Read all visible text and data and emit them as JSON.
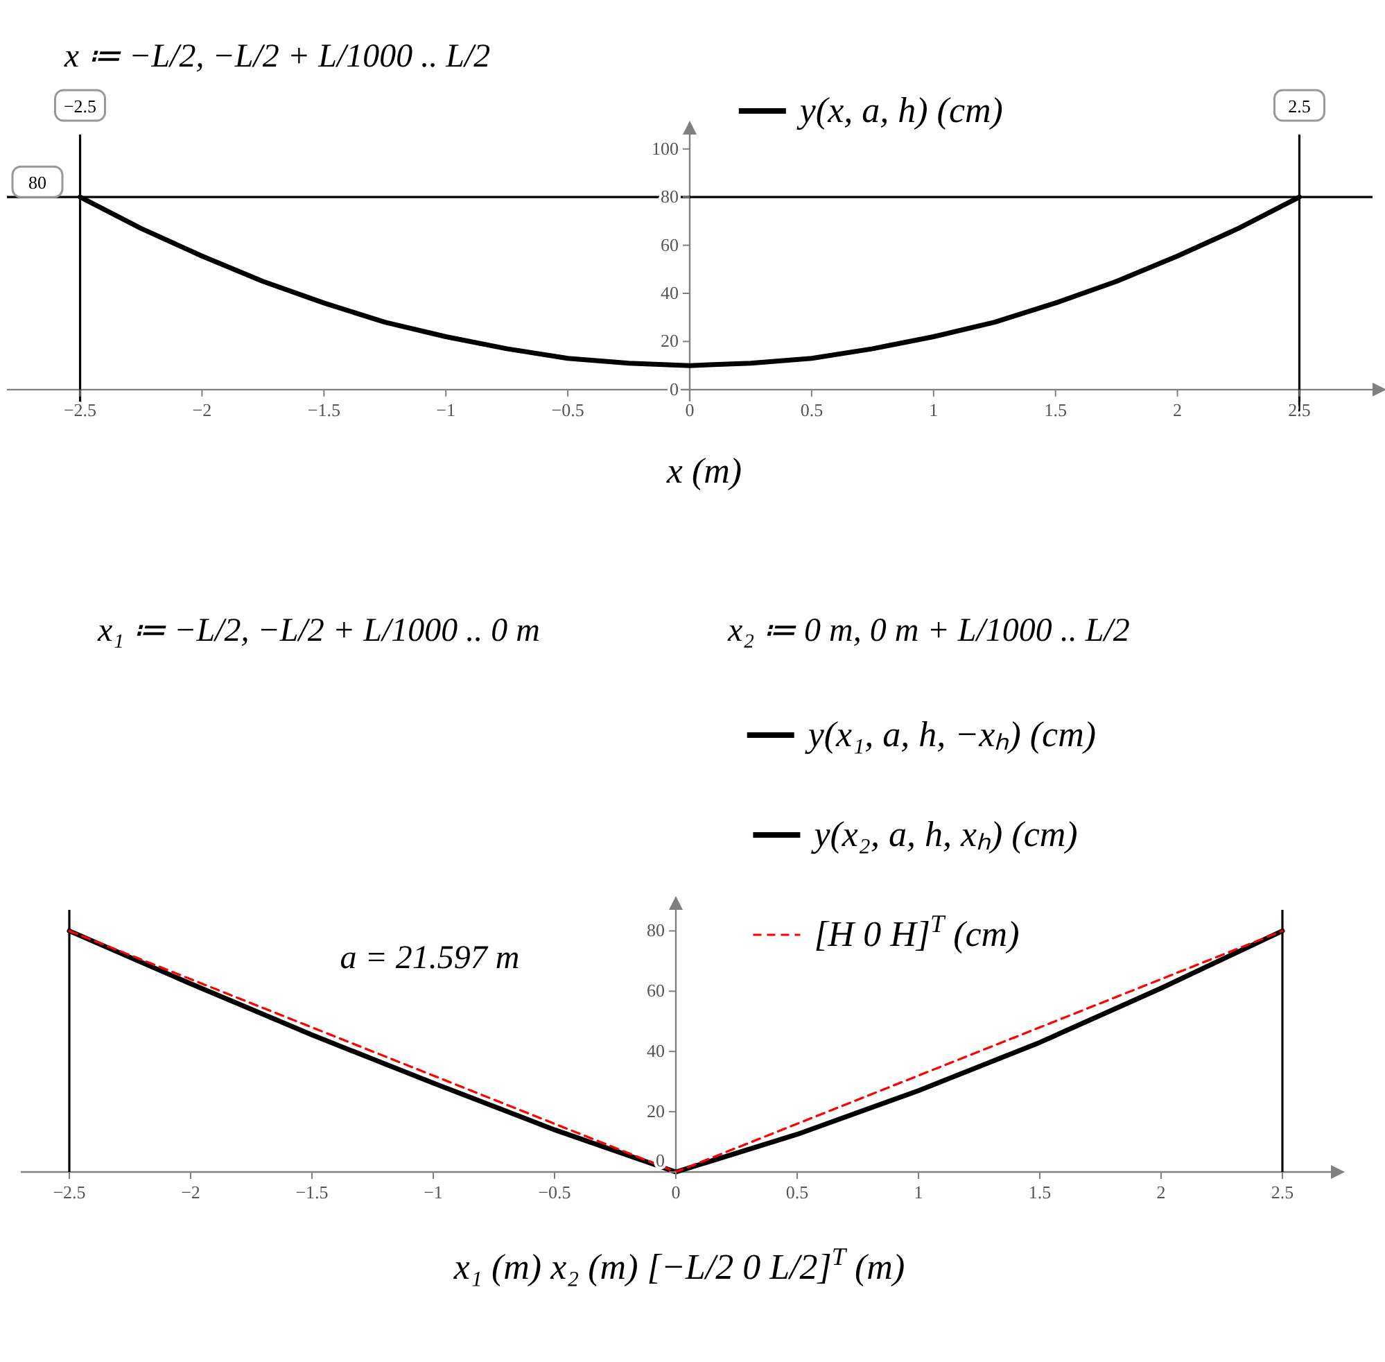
{
  "chart_data": [
    {
      "type": "line",
      "annotations": [
        "x ≔ −L/2, −L/2 + L/1000 .. L/2"
      ],
      "xlabel": "x (m)",
      "x": [
        -2.5,
        -2.25,
        -2,
        -1.75,
        -1.5,
        -1.25,
        -1,
        -0.75,
        -0.5,
        -0.25,
        0,
        0.25,
        0.5,
        0.75,
        1,
        1.25,
        1.5,
        1.75,
        2,
        2.25,
        2.5
      ],
      "series": [
        {
          "name": "y(x, a, h) (cm)",
          "color": "#000000",
          "values": [
            80,
            67,
            55.5,
            45,
            36,
            28,
            22,
            17,
            13,
            11,
            10,
            11,
            13,
            17,
            22,
            28,
            36,
            45,
            55.5,
            67,
            80
          ]
        }
      ],
      "xlim": [
        -2.8,
        2.8
      ],
      "ylim": [
        -11,
        106
      ],
      "xticks": [
        -2.5,
        -2,
        -1.5,
        -1,
        -0.5,
        0,
        0.5,
        1,
        1.5,
        2,
        2.5
      ],
      "yticks": [
        0,
        20,
        40,
        60,
        80,
        100
      ],
      "ref_lines": [
        {
          "axis": "y",
          "value": 80,
          "label": "80"
        },
        {
          "axis": "x",
          "value": -2.5,
          "label": "−2.5"
        },
        {
          "axis": "x",
          "value": 2.5,
          "label": "2.5"
        }
      ],
      "legend": "top",
      "grid": false
    },
    {
      "type": "line",
      "annotations": [
        "x₁ ≔ −L/2, −L/2 + L/1000 .. 0 m",
        "x₂ ≔ 0 m, 0 m + L/1000 .. L/2",
        "a = 21.597 m"
      ],
      "xlabel": "x₁ (m)   x₂ (m)   [−L/2  0  L/2]$^{T}$ (m)",
      "series": [
        {
          "name": "y(x₁, a, h, −xₕ) (cm)",
          "color": "#000000",
          "x": [
            -2.5,
            -2,
            -1.5,
            -1,
            -0.5,
            0
          ],
          "values": [
            80,
            62.5,
            45.5,
            29.5,
            14,
            0
          ]
        },
        {
          "name": "y(x₂, a, h, xₕ) (cm)",
          "color": "#000000",
          "x": [
            0,
            0.5,
            1,
            1.5,
            2,
            2.5
          ],
          "values": [
            0,
            12.5,
            27,
            43,
            61,
            80
          ]
        },
        {
          "name": "[H  0  H]$^{T}$ (cm)",
          "color": "#ff0000",
          "x": [
            -2.5,
            0,
            2.5
          ],
          "values": [
            80,
            0,
            80
          ],
          "line_style": "dashed"
        }
      ],
      "xlim": [
        -2.7,
        2.7
      ],
      "ylim": [
        0,
        87
      ],
      "xticks": [
        -2.5,
        -2,
        -1.5,
        -1,
        -0.5,
        0,
        0.5,
        1,
        1.5,
        2,
        2.5
      ],
      "yticks": [
        0,
        20,
        40,
        60,
        80
      ],
      "ref_lines": [
        {
          "axis": "x",
          "value": -2.5
        },
        {
          "axis": "x",
          "value": 2.5
        }
      ],
      "legend": "top",
      "grid": false
    }
  ]
}
